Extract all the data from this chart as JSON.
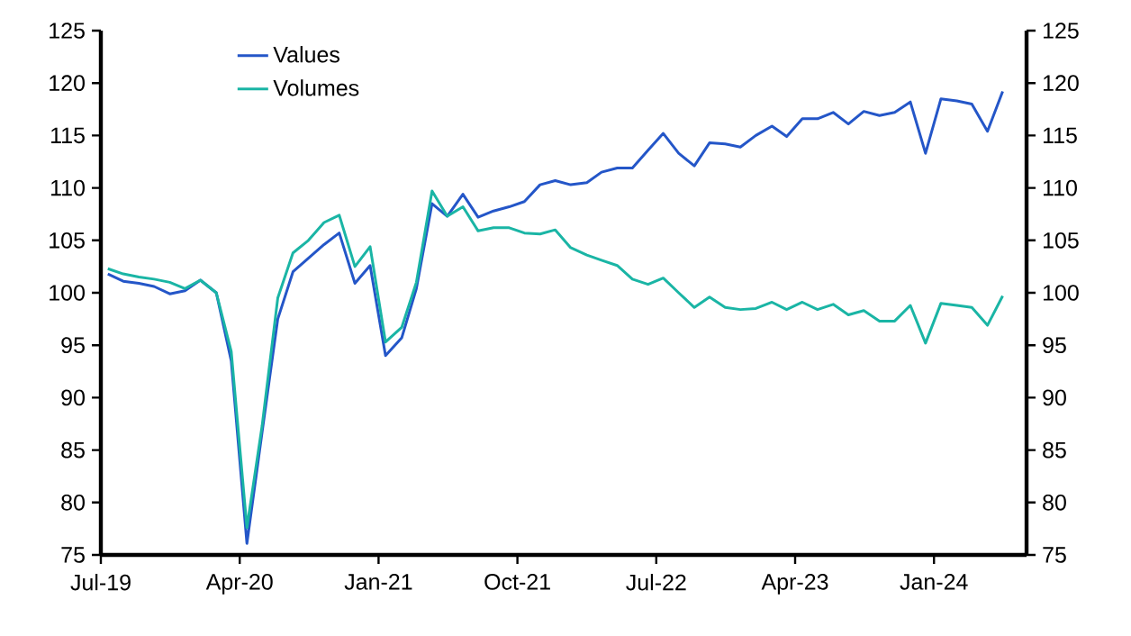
{
  "chart_data": {
    "type": "line",
    "x": [
      "2019-07-15",
      "2019-08-15",
      "2019-09-15",
      "2019-10-15",
      "2019-11-15",
      "2019-12-15",
      "2020-01-15",
      "2020-02-15",
      "2020-03-15",
      "2020-04-15",
      "2020-05-15",
      "2020-06-15",
      "2020-07-15",
      "2020-08-15",
      "2020-09-15",
      "2020-10-15",
      "2020-11-15",
      "2020-12-15",
      "2021-01-15",
      "2021-02-15",
      "2021-03-15",
      "2021-04-15",
      "2021-05-15",
      "2021-06-15",
      "2021-07-15",
      "2021-08-15",
      "2021-09-15",
      "2021-10-15",
      "2021-11-15",
      "2021-12-15",
      "2022-01-15",
      "2022-02-15",
      "2022-03-15",
      "2022-04-15",
      "2022-05-15",
      "2022-06-15",
      "2022-07-15",
      "2022-08-15",
      "2022-09-15",
      "2022-10-15",
      "2022-11-15",
      "2022-12-15",
      "2023-01-15",
      "2023-02-15",
      "2023-03-15",
      "2023-04-15",
      "2023-05-15",
      "2023-06-15",
      "2023-07-15",
      "2023-08-15",
      "2023-09-15",
      "2023-10-15",
      "2023-11-15",
      "2023-12-15",
      "2024-01-15",
      "2024-02-15",
      "2024-03-15",
      "2024-04-15",
      "2024-05-15"
    ],
    "series": [
      {
        "name": "Values",
        "color": "#2456c8",
        "values": [
          101.8,
          101.1,
          100.9,
          100.6,
          99.9,
          100.2,
          101.2,
          100.0,
          93.5,
          76.1,
          86.7,
          97.5,
          102.0,
          103.3,
          104.6,
          105.7,
          100.9,
          102.6,
          94.0,
          95.7,
          100.4,
          108.5,
          107.3,
          109.4,
          107.2,
          107.8,
          108.2,
          108.7,
          110.3,
          110.7,
          110.3,
          110.5,
          111.5,
          111.9,
          111.9,
          113.6,
          115.2,
          113.3,
          112.1,
          114.3,
          114.2,
          113.9,
          115.0,
          115.9,
          114.9,
          116.6,
          116.6,
          117.2,
          116.1,
          117.3,
          116.9,
          117.2,
          118.2,
          113.3,
          118.5,
          118.3,
          118.0,
          115.4,
          119.2
        ]
      },
      {
        "name": "Volumes",
        "color": "#1ab5a5",
        "values": [
          102.3,
          101.8,
          101.5,
          101.3,
          101.0,
          100.4,
          101.2,
          100.0,
          94.4,
          77.6,
          87.3,
          99.5,
          103.8,
          105.0,
          106.7,
          107.4,
          102.5,
          104.4,
          95.3,
          96.7,
          101.0,
          109.7,
          107.3,
          108.2,
          105.9,
          106.2,
          106.2,
          105.7,
          105.6,
          106.0,
          104.3,
          103.6,
          103.1,
          102.6,
          101.3,
          100.8,
          101.4,
          100.0,
          98.6,
          99.6,
          98.6,
          98.4,
          98.5,
          99.1,
          98.4,
          99.1,
          98.4,
          98.9,
          97.9,
          98.3,
          97.3,
          97.3,
          98.8,
          95.2,
          99.0,
          98.8,
          98.6,
          96.9,
          99.7
        ]
      }
    ],
    "xlim": [
      "2019-07-01",
      "2024-07-01"
    ],
    "xticks": [
      {
        "value": "2019-07-01",
        "label": "Jul-19"
      },
      {
        "value": "2020-04-01",
        "label": "Apr-20"
      },
      {
        "value": "2021-01-01",
        "label": "Jan-21"
      },
      {
        "value": "2021-10-01",
        "label": "Oct-21"
      },
      {
        "value": "2022-07-01",
        "label": "Jul-22"
      },
      {
        "value": "2023-04-01",
        "label": "Apr-23"
      },
      {
        "value": "2024-01-01",
        "label": "Jan-24"
      }
    ],
    "ylim": [
      75,
      125
    ],
    "yticks": [
      75,
      80,
      85,
      90,
      95,
      100,
      105,
      110,
      115,
      120,
      125
    ],
    "y2lim": [
      75,
      125
    ],
    "y2ticks": [
      75,
      80,
      85,
      90,
      95,
      100,
      105,
      110,
      115,
      120,
      125
    ],
    "grid": false,
    "legend": "top left",
    "marker": "none",
    "line_style": "solid"
  }
}
